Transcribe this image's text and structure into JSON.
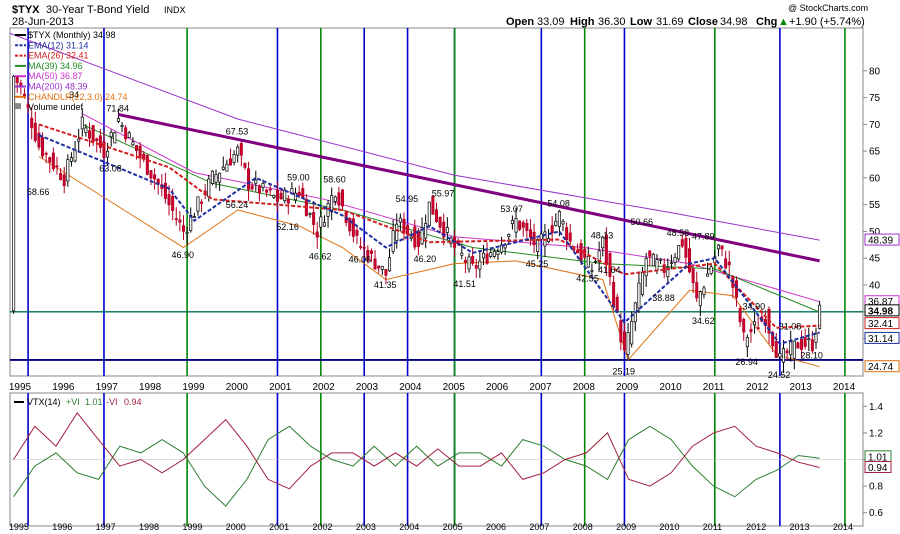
{
  "header": {
    "symbol": "$TYX",
    "name": "30-Year T-Bond Yield",
    "exchange": "INDX",
    "date": "28-Jun-2013",
    "open_label": "Open",
    "open": "33.09",
    "high_label": "High",
    "high": "36.30",
    "low_label": "Low",
    "low": "31.69",
    "close_label": "Close",
    "close": "34.98",
    "chg_label": "Chg",
    "chg": "+1.90 (+5.74%)",
    "arrow": "▲",
    "copyright": "@ StockCharts.com"
  },
  "legend": [
    {
      "text": "$TYX (Monthly) 34.98",
      "color": "#000000",
      "style": "solid"
    },
    {
      "text": "EMA(12) 31.14",
      "color": "#1f2fa0",
      "style": "dashed"
    },
    {
      "text": "EMA(26) 32.41",
      "color": "#d02020",
      "style": "dashed"
    },
    {
      "text": "MA(39) 34.96",
      "color": "#228b22",
      "style": "solid"
    },
    {
      "text": "MA(50) 36.87",
      "color": "#cc33cc",
      "style": "solid"
    },
    {
      "text": "MA(200) 48.39",
      "color": "#9933cc",
      "style": "solid"
    },
    {
      "text": "CHANDLR(22,3.0) 24.74",
      "color": "#e07010",
      "style": "solid"
    },
    {
      "text": "Volume undef",
      "color": "#000000",
      "style": "none"
    }
  ],
  "indicator": {
    "legend_name": "VTX(14)",
    "plus_label": "+VI",
    "plus_value": "1.01",
    "minus_label": "-VI",
    "minus_value": "0.94",
    "plus_color": "#2e7d32",
    "minus_color": "#a0203c"
  },
  "colors": {
    "blue_line": "#0000cc",
    "green_line": "#008800",
    "trend_line": "#800080",
    "horizontal_teal": "#006e5a",
    "horizontal_navy": "#000080"
  },
  "chart_data": [
    {
      "type": "candlestick",
      "title": "$TYX 30-Year T-Bond Yield INDX",
      "frequency": "Monthly",
      "x_range": [
        "1994-10",
        "2014-06"
      ],
      "y_range": [
        23,
        88
      ],
      "y_ticks": [
        30,
        35,
        40,
        45,
        50,
        55,
        60,
        65,
        70,
        75,
        80
      ],
      "x_ticks_top": [
        "1995",
        "1996",
        "1997",
        "1998",
        "1999",
        "2000",
        "2001",
        "2002",
        "2003",
        "2004",
        "2005",
        "2006",
        "2007",
        "2008",
        "2009",
        "2010",
        "2011",
        "2012",
        "2013",
        "2014"
      ],
      "x_ticks_bottom": [
        "1995",
        "1996",
        "1997",
        "1998",
        "1999",
        "2000",
        "2001",
        "2002",
        "2003",
        "2004",
        "2005",
        "2006",
        "2007",
        "2008",
        "2009",
        "2010",
        "2011",
        "2012",
        "2013",
        "2014"
      ],
      "price_path": [
        [
          "1994-11",
          79.0
        ],
        [
          "1995-01",
          77.0
        ],
        [
          "1995-06",
          66.0
        ],
        [
          "1996-01",
          60.0
        ],
        [
          "1996-06",
          70.0
        ],
        [
          "1996-12",
          65.0
        ],
        [
          "1997-04",
          71.0
        ],
        [
          "1997-10",
          64.0
        ],
        [
          "1998-02",
          60.0
        ],
        [
          "1998-10",
          50.0
        ],
        [
          "1999-02",
          55.0
        ],
        [
          "1999-06",
          60.0
        ],
        [
          "2000-01",
          65.0
        ],
        [
          "2000-04",
          59.0
        ],
        [
          "2000-12",
          56.0
        ],
        [
          "2001-06",
          57.5
        ],
        [
          "2001-11",
          50.0
        ],
        [
          "2002-04",
          58.0
        ],
        [
          "2002-10",
          48.0
        ],
        [
          "2003-06",
          42.0
        ],
        [
          "2003-09",
          52.0
        ],
        [
          "2004-03",
          48.0
        ],
        [
          "2004-06",
          55.0
        ],
        [
          "2005-01",
          47.0
        ],
        [
          "2005-06",
          43.0
        ],
        [
          "2006-02",
          48.0
        ],
        [
          "2006-06",
          52.0
        ],
        [
          "2006-12",
          47.0
        ],
        [
          "2007-06",
          53.0
        ],
        [
          "2007-09",
          48.0
        ],
        [
          "2008-03",
          43.0
        ],
        [
          "2008-06",
          48.0
        ],
        [
          "2008-12",
          27.0
        ],
        [
          "2009-06",
          45.0
        ],
        [
          "2009-11",
          43.0
        ],
        [
          "2010-04",
          48.0
        ],
        [
          "2010-08",
          37.0
        ],
        [
          "2011-02",
          47.0
        ],
        [
          "2011-05",
          43.0
        ],
        [
          "2011-09",
          30.0
        ],
        [
          "2012-03",
          34.0
        ],
        [
          "2012-07",
          26.0
        ],
        [
          "2012-12",
          29.0
        ],
        [
          "2013-04",
          29.0
        ],
        [
          "2013-06",
          34.98
        ]
      ],
      "ma200_path": [
        [
          "1994-10",
          87.0
        ],
        [
          "2000-01",
          71.0
        ],
        [
          "2005-01",
          60.5
        ],
        [
          "2010-01",
          53.5
        ],
        [
          "2013-06",
          48.39
        ]
      ],
      "ma50_path": [
        [
          "1996-06",
          72.0
        ],
        [
          "1999-01",
          61.0
        ],
        [
          "2002-01",
          56.0
        ],
        [
          "2005-01",
          49.0
        ],
        [
          "2008-01",
          47.0
        ],
        [
          "2010-06",
          44.0
        ],
        [
          "2013-06",
          36.87
        ]
      ],
      "ma39_path": [
        [
          "1996-06",
          70.0
        ],
        [
          "1999-06",
          59.0
        ],
        [
          "2002-06",
          54.0
        ],
        [
          "2005-06",
          47.0
        ],
        [
          "2008-06",
          44.0
        ],
        [
          "2011-01",
          43.0
        ],
        [
          "2013-06",
          34.96
        ]
      ],
      "ema26_path": [
        [
          "1995-06",
          70.0
        ],
        [
          "1998-06",
          62.0
        ],
        [
          "1999-06",
          56.0
        ],
        [
          "2002-06",
          54.0
        ],
        [
          "2004-06",
          48.0
        ],
        [
          "2007-06",
          48.5
        ],
        [
          "2008-12",
          42.0
        ],
        [
          "2011-01",
          44.0
        ],
        [
          "2012-06",
          32.0
        ],
        [
          "2013-06",
          32.41
        ]
      ],
      "ema12_path": [
        [
          "1995-06",
          68.0
        ],
        [
          "1998-06",
          58.0
        ],
        [
          "1999-01",
          52.0
        ],
        [
          "2000-06",
          60.0
        ],
        [
          "2002-06",
          53.0
        ],
        [
          "2003-06",
          47.0
        ],
        [
          "2004-06",
          51.0
        ],
        [
          "2005-06",
          46.0
        ],
        [
          "2007-06",
          50.0
        ],
        [
          "2008-12",
          33.0
        ],
        [
          "2010-06",
          44.0
        ],
        [
          "2011-01",
          45.0
        ],
        [
          "2012-07",
          29.0
        ],
        [
          "2013-06",
          31.14
        ]
      ],
      "chandelier_path": [
        [
          "1995-06",
          64.0
        ],
        [
          "1998-10",
          47.0
        ],
        [
          "2000-01",
          54.0
        ],
        [
          "2001-06",
          51.0
        ],
        [
          "2002-06",
          47.0
        ],
        [
          "2003-06",
          41.0
        ],
        [
          "2005-01",
          44.0
        ],
        [
          "2006-06",
          44.5
        ],
        [
          "2008-06",
          41.0
        ],
        [
          "2009-01",
          26.0
        ],
        [
          "2010-06",
          39.0
        ],
        [
          "2011-06",
          38.0
        ],
        [
          "2012-06",
          27.0
        ],
        [
          "2013-06",
          24.74
        ]
      ],
      "annotations": [
        [
          "1995-06",
          58.66,
          "58.66"
        ],
        [
          "1996-05",
          74.34,
          ".34"
        ],
        [
          "1997-04",
          71.84,
          "71.84"
        ],
        [
          "1997-02",
          63.08,
          "63.08"
        ],
        [
          "1998-10",
          46.9,
          "46.90"
        ],
        [
          "2000-01",
          67.53,
          "67.53"
        ],
        [
          "2000-01",
          56.24,
          "56.24"
        ],
        [
          "2001-06",
          59.0,
          "59.00"
        ],
        [
          "2001-03",
          52.16,
          "52.16"
        ],
        [
          "2002-04",
          58.6,
          "58.60"
        ],
        [
          "2001-12",
          46.62,
          "46.62"
        ],
        [
          "2002-11",
          46.06,
          "46.06"
        ],
        [
          "2003-06",
          41.35,
          "41.35"
        ],
        [
          "2003-12",
          54.95,
          "54.95"
        ],
        [
          "2004-10",
          55.97,
          "55.97"
        ],
        [
          "2004-05",
          46.2,
          "46.20"
        ],
        [
          "2005-04",
          41.51,
          "41.51"
        ],
        [
          "2006-05",
          53.07,
          "53.07"
        ],
        [
          "2007-06",
          54.08,
          "54.08"
        ],
        [
          "2006-12",
          45.25,
          "45.25"
        ],
        [
          "2008-06",
          48.13,
          "48.13"
        ],
        [
          "2008-02",
          42.55,
          "42.55"
        ],
        [
          "2008-08",
          41.64,
          "41.64"
        ],
        [
          "2009-05",
          50.66,
          "50.66"
        ],
        [
          "2010-03",
          48.58,
          "48.58"
        ],
        [
          "2010-10",
          47.89,
          "47.89"
        ],
        [
          "2009-11",
          38.88,
          "38.88"
        ],
        [
          "2010-10",
          34.62,
          "34.62"
        ],
        [
          "2008-12",
          25.19,
          "25.19"
        ],
        [
          "2011-12",
          34.9,
          "34.90"
        ],
        [
          "2012-10",
          31.08,
          "31.08"
        ],
        [
          "2011-10",
          26.94,
          "26.94"
        ],
        [
          "2012-07",
          24.52,
          "24.52"
        ],
        [
          "2013-04",
          28.1,
          "28.10"
        ]
      ],
      "trend_line": [
        [
          "1997-04",
          71.84
        ],
        [
          "2013-06",
          44.5
        ]
      ],
      "horizontal_lines": [
        34.98,
        26.0
      ],
      "right_labels": [
        "48.39",
        "36.87",
        "34.98",
        "32.41",
        "31.14",
        "24.74"
      ],
      "vertical_lines_blue": [
        "1995-03",
        "1996-12",
        "2000-12",
        "2002-12",
        "2003-12",
        "2005-01",
        "2007-01",
        "2008-12",
        "2012-07"
      ],
      "vertical_lines_green": [
        "1998-11",
        "2001-12",
        "2005-01",
        "2008-01",
        "2011-01",
        "2014-01"
      ]
    },
    {
      "type": "line",
      "title": "VTX(14)",
      "y_range": [
        0.5,
        1.5
      ],
      "y_ticks": [
        0.6,
        0.8,
        1.0,
        1.2,
        1.4
      ],
      "series": [
        {
          "name": "+VI",
          "values": [
            0.72,
            0.95,
            1.05,
            0.9,
            0.85,
            1.1,
            1.05,
            1.15,
            1.05,
            0.8,
            0.65,
            0.85,
            1.15,
            1.25,
            1.1,
            1.0,
            0.95,
            1.1,
            0.95,
            1.1,
            0.95,
            1.05,
            1.05,
            0.95,
            1.15,
            1.1,
            1.0,
            0.95,
            0.85,
            1.15,
            1.25,
            1.15,
            0.95,
            0.8,
            0.72,
            0.85,
            0.92,
            1.03,
            1.01
          ]
        },
        {
          "name": "-VI",
          "values": [
            1.0,
            1.25,
            1.1,
            1.35,
            1.15,
            0.95,
            1.0,
            0.9,
            1.0,
            1.15,
            1.3,
            1.1,
            0.85,
            0.78,
            0.95,
            1.05,
            1.05,
            0.95,
            1.05,
            0.95,
            1.08,
            0.95,
            0.95,
            1.05,
            0.85,
            0.9,
            1.0,
            1.05,
            1.2,
            0.85,
            0.8,
            0.9,
            1.1,
            1.2,
            1.25,
            1.1,
            1.05,
            0.98,
            0.94
          ]
        }
      ]
    }
  ]
}
